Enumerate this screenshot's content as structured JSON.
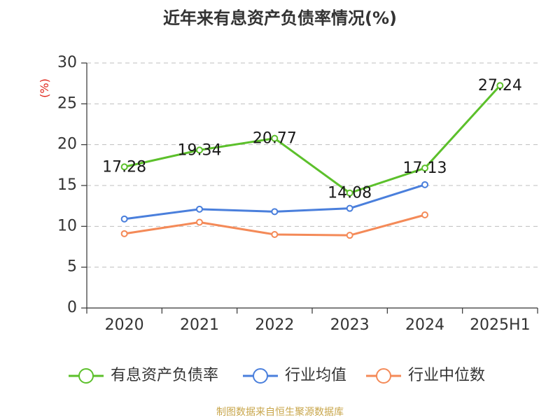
{
  "title": "近年来有息资产负债率情况(%)",
  "source": "制图数据来自恒生聚源数据库",
  "chart_data": {
    "type": "line",
    "title": "近年来有息资产负债率情况(%)",
    "ylabel": "(%)",
    "xlabel": "",
    "categories": [
      "2020",
      "2021",
      "2022",
      "2023",
      "2024",
      "2025H1"
    ],
    "ylim": [
      0,
      30
    ],
    "yticks": [
      0,
      5,
      10,
      15,
      20,
      25,
      30
    ],
    "grid": true,
    "legend_position": "bottom",
    "series": [
      {
        "name": "有息资产负债率",
        "color": "#5cc02b",
        "values": [
          17.28,
          19.34,
          20.77,
          14.08,
          17.13,
          27.24
        ],
        "labels": [
          "17.28",
          "19.34",
          "20.77",
          "14.08",
          "17.13",
          "27.24"
        ]
      },
      {
        "name": "行业均值",
        "color": "#4a7fdc",
        "values": [
          10.9,
          12.1,
          11.8,
          12.2,
          15.1,
          null
        ]
      },
      {
        "name": "行业中位数",
        "color": "#f48a58",
        "values": [
          9.1,
          10.5,
          9.0,
          8.9,
          11.4,
          null
        ]
      }
    ]
  }
}
